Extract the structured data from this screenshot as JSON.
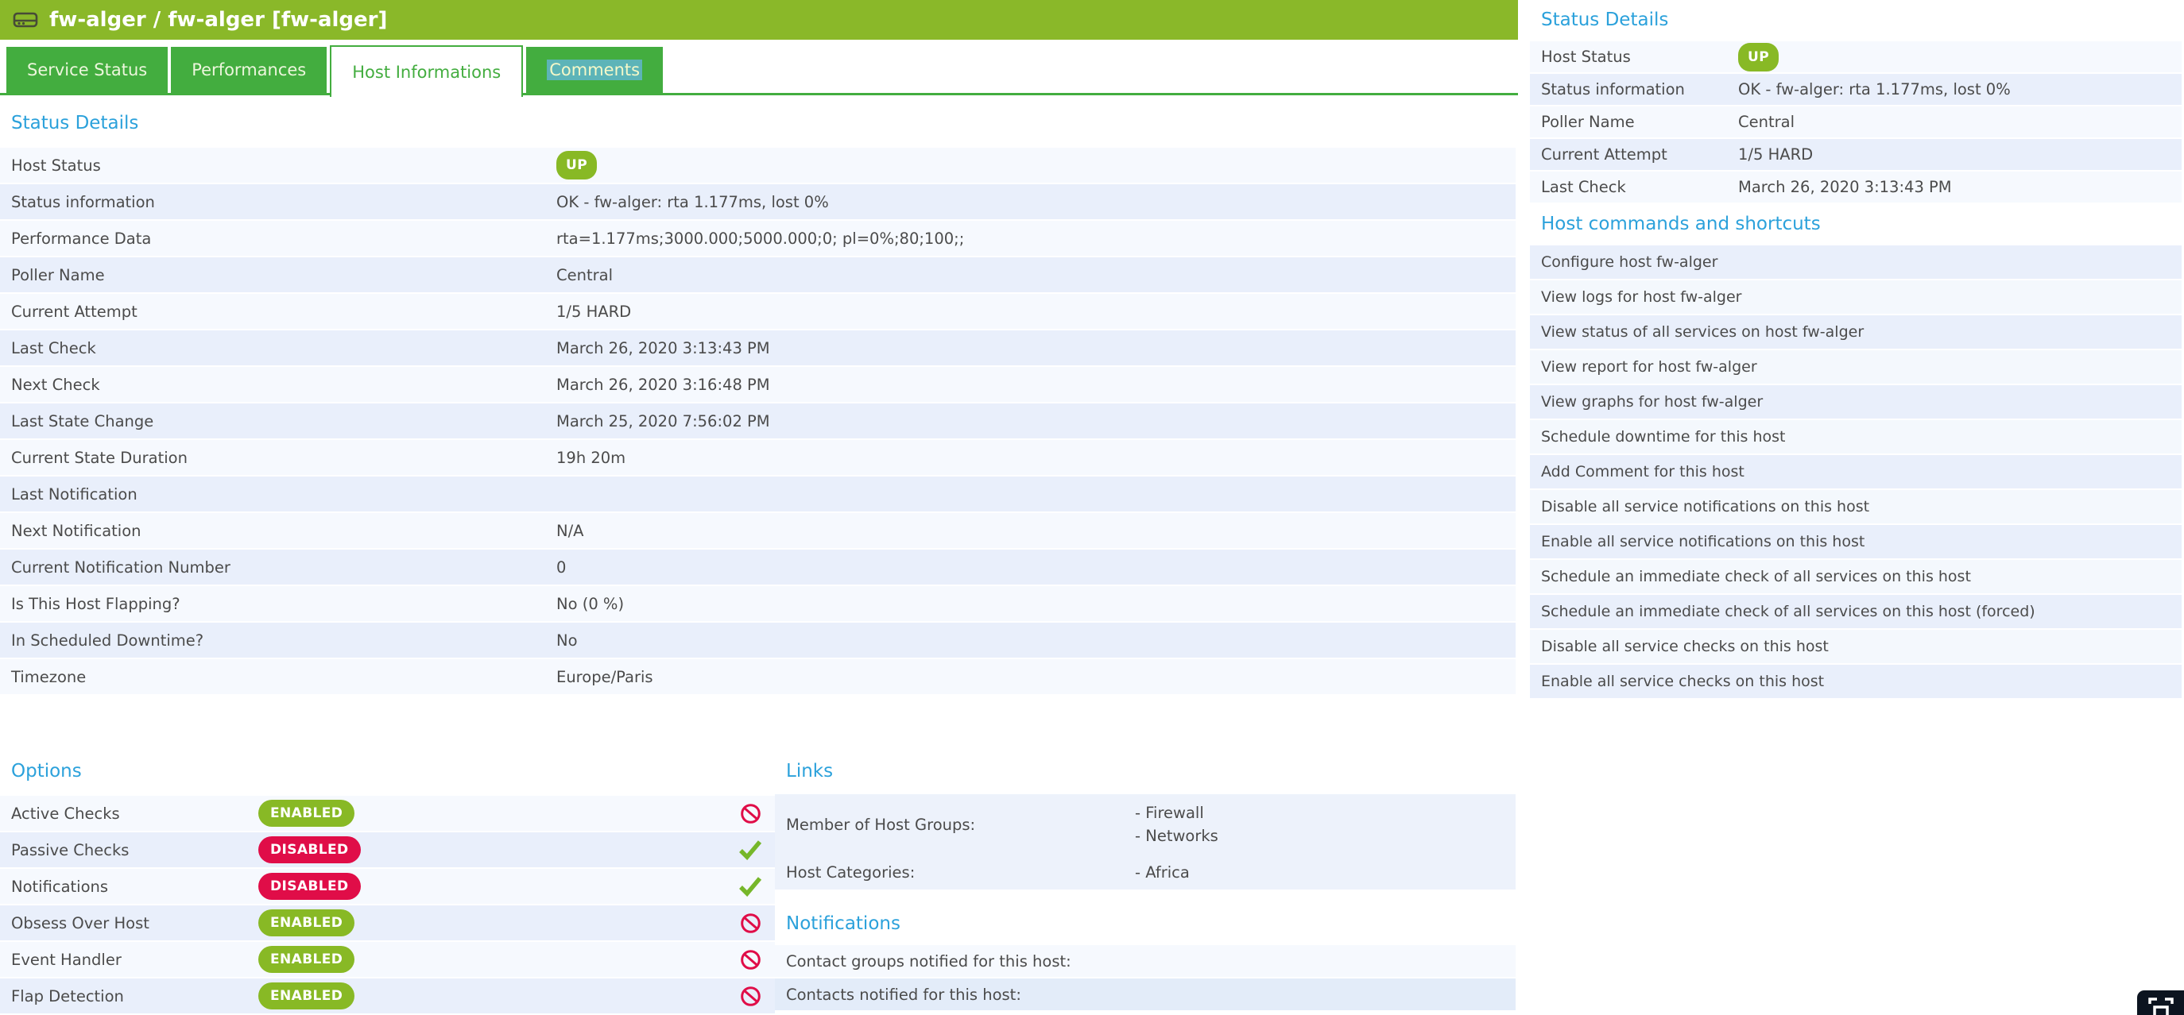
{
  "header": {
    "title": "fw-alger / fw-alger [fw-alger]"
  },
  "tabs": [
    {
      "label": "Service Status",
      "active": false
    },
    {
      "label": "Performances",
      "active": false
    },
    {
      "label": "Host Informations",
      "active": true
    },
    {
      "label": "Comments",
      "active": false,
      "text_selected": true
    }
  ],
  "status_details_left": {
    "heading": "Status Details",
    "rows": [
      {
        "label": "Host Status",
        "value": "UP",
        "badge": "up"
      },
      {
        "label": "Status information",
        "value": "OK - fw-alger: rta 1.177ms, lost 0%"
      },
      {
        "label": "Performance Data",
        "value": "rta=1.177ms;3000.000;5000.000;0; pl=0%;80;100;;"
      },
      {
        "label": "Poller Name",
        "value": "Central"
      },
      {
        "label": "Current Attempt",
        "value": "1/5 HARD"
      },
      {
        "label": "Last Check",
        "value": "March 26, 2020 3:13:43 PM"
      },
      {
        "label": "Next Check",
        "value": "March 26, 2020 3:16:48 PM"
      },
      {
        "label": "Last State Change",
        "value": "March 25, 2020 7:56:02 PM"
      },
      {
        "label": "Current State Duration",
        "value": "19h 20m"
      },
      {
        "label": "Last Notification",
        "value": ""
      },
      {
        "label": "Next Notification",
        "value": "N/A"
      },
      {
        "label": "Current Notification Number",
        "value": "0"
      },
      {
        "label": "Is This Host Flapping?",
        "value": "No (0 %)"
      },
      {
        "label": "In Scheduled Downtime?",
        "value": "No"
      },
      {
        "label": "Timezone",
        "value": "Europe/Paris"
      }
    ]
  },
  "options": {
    "heading": "Options",
    "rows": [
      {
        "label": "Active Checks",
        "badge": "ENABLED",
        "badge_color": "green",
        "icon": "prohibited"
      },
      {
        "label": "Passive Checks",
        "badge": "DISABLED",
        "badge_color": "red",
        "icon": "check"
      },
      {
        "label": "Notifications",
        "badge": "DISABLED",
        "badge_color": "red",
        "icon": "check"
      },
      {
        "label": "Obsess Over Host",
        "badge": "ENABLED",
        "badge_color": "green",
        "icon": "prohibited"
      },
      {
        "label": "Event Handler",
        "badge": "ENABLED",
        "badge_color": "green",
        "icon": "prohibited"
      },
      {
        "label": "Flap Detection",
        "badge": "ENABLED",
        "badge_color": "green",
        "icon": "prohibited"
      }
    ]
  },
  "links": {
    "heading": "Links",
    "rows": [
      {
        "label": "Member of Host Groups:",
        "values": [
          "- Firewall",
          "- Networks"
        ],
        "tall": true
      },
      {
        "label": "Host Categories:",
        "values": [
          "- Africa"
        ],
        "tall": false
      }
    ]
  },
  "notifications": {
    "heading": "Notifications",
    "rows": [
      {
        "label": "Contact groups notified for this host:"
      },
      {
        "label": "Contacts notified for this host:"
      }
    ]
  },
  "status_details_right": {
    "heading": "Status Details",
    "rows": [
      {
        "label": "Host Status",
        "value": "UP",
        "badge": "up"
      },
      {
        "label": "Status information",
        "value": "OK - fw-alger: rta 1.177ms, lost 0%"
      },
      {
        "label": "Poller Name",
        "value": "Central"
      },
      {
        "label": "Current Attempt",
        "value": "1/5 HARD"
      },
      {
        "label": "Last Check",
        "value": "March 26, 2020 3:13:43 PM"
      }
    ]
  },
  "host_commands": {
    "heading": "Host commands and shortcuts",
    "items": [
      "Configure host fw-alger",
      "View logs for host fw-alger",
      "View status of all services on host fw-alger",
      "View report for host fw-alger",
      "View graphs for host fw-alger",
      "Schedule downtime for this host",
      "Add Comment for this host",
      "Disable all service notifications on this host",
      "Enable all service notifications on this host",
      "Schedule an immediate check of all services on this host",
      "Schedule an immediate check of all services on this host (forced)",
      "Disable all service checks on this host",
      "Enable all service checks on this host"
    ]
  },
  "icons": {
    "header": "server-icon",
    "enabled_action": "prohibited-icon",
    "disabled_action": "check-icon",
    "corner": "fullscreen-icon"
  },
  "colors": {
    "header_green": "#8ab829",
    "tab_green": "#43ad3f",
    "heading_blue": "#2ba1db",
    "badge_green": "#88b925",
    "badge_red": "#e00d48",
    "check_green": "#76b72a",
    "row_light": "#f6f9fe",
    "row_blue": "#e9effb",
    "selection_teal": "#5db4b8"
  }
}
